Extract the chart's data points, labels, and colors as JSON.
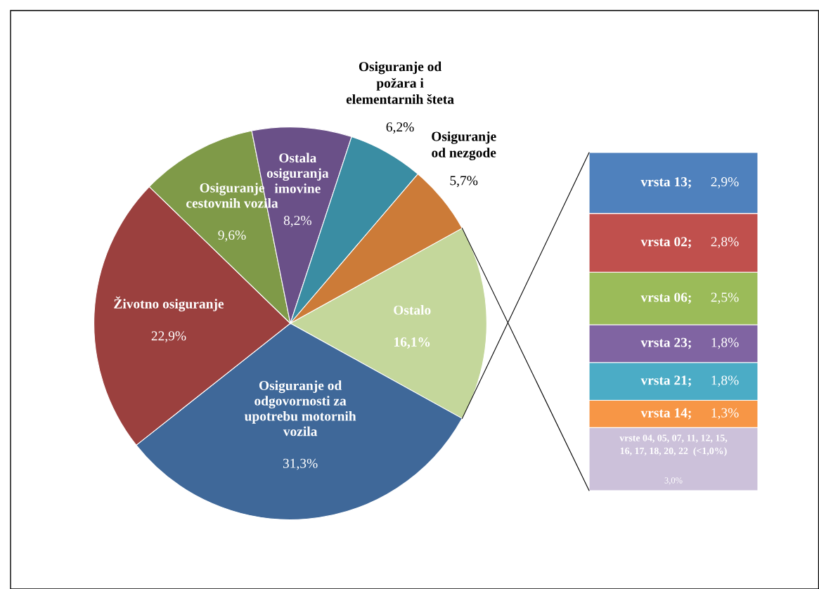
{
  "chart_data": [
    {
      "type": "pie",
      "categories": [
        "Ostalo",
        "Osiguranje od\nodgovornosti za\nupotrebu motornih\nvozila",
        "Životno osiguranje",
        "Osiguranje\ncestovnih vozila",
        "Ostala\nosiguranja\nimovine",
        "Osiguranje od\npožara i\nelementarnih šteta",
        "Osiguranje\nod nezgode"
      ],
      "values": [
        16.1,
        31.3,
        22.9,
        9.6,
        8.2,
        6.2,
        5.7
      ],
      "value_labels": [
        "16,1%",
        "31,3%",
        "22,9%",
        "9,6%",
        "8,2%",
        "6,2%",
        "5,7%"
      ],
      "colors": [
        "#c4d79b",
        "#3f6899",
        "#9b403e",
        "#7f9a48",
        "#6a5088",
        "#3a8da3",
        "#cc7b38"
      ]
    },
    {
      "type": "bar",
      "stacked": true,
      "categories": [
        null
      ],
      "data_labels": true,
      "series": [
        {
          "name": "vrste 04, 05, 07, 11, 12, 15,\n16, 17, 18, 20, 22  (<1,0%)",
          "color": "#ccc1da",
          "values": [
            3.0
          ],
          "value_labels": [
            "3,0%"
          ]
        },
        {
          "name": "vrsta 14;",
          "color": "#f79646",
          "values": [
            1.3
          ],
          "value_labels": [
            "1,3%"
          ]
        },
        {
          "name": "vrsta 21;",
          "color": "#4bacc6",
          "values": [
            1.8
          ],
          "value_labels": [
            "1,8%"
          ]
        },
        {
          "name": "vrsta 23;",
          "color": "#8064a2",
          "values": [
            1.8
          ],
          "value_labels": [
            "1,8%"
          ]
        },
        {
          "name": "vrsta 06;",
          "color": "#9bbb59",
          "values": [
            2.5
          ],
          "value_labels": [
            "2,5%"
          ]
        },
        {
          "name": "vrsta 02;",
          "color": "#c0504d",
          "values": [
            2.8
          ],
          "value_labels": [
            "2,8%"
          ]
        },
        {
          "name": "vrsta 13;",
          "color": "#4f81bd",
          "values": [
            2.9
          ],
          "value_labels": [
            "2,9%"
          ]
        }
      ]
    }
  ]
}
